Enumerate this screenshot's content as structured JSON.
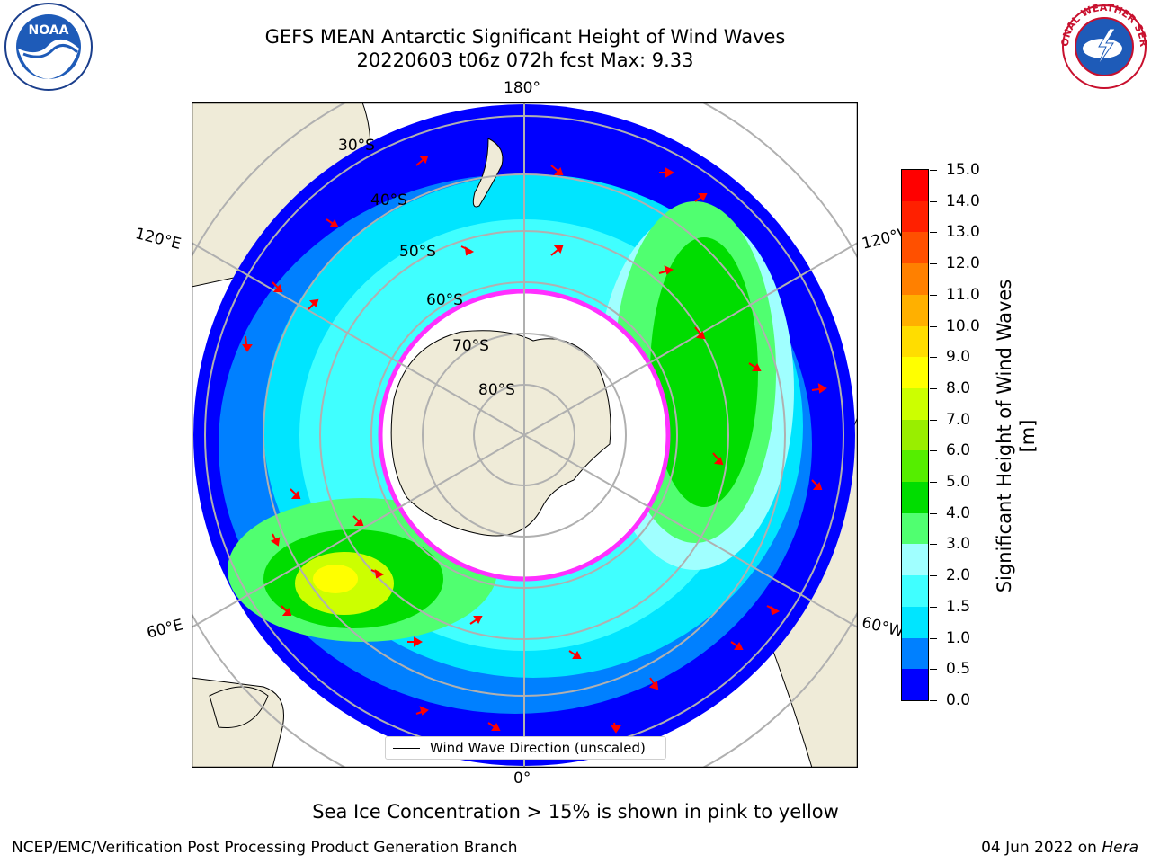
{
  "title_line1": "GEFS MEAN Antarctic Significant Height of Wind Waves",
  "title_line2": "20220603 t06z 072h fcst   Max: 9.33",
  "longitude_labels": {
    "top": "180°",
    "bottom": "0°",
    "upper_left": "120°E",
    "upper_right": "120°W",
    "lower_left": "60°E",
    "lower_right": "60°W"
  },
  "latitude_labels": [
    "30°S",
    "40°S",
    "50°S",
    "60°S",
    "70°S",
    "80°S"
  ],
  "colorbar": {
    "label": "Significant Height of Wind Waves [m]",
    "ticks": [
      "15.0",
      "14.0",
      "13.0",
      "12.0",
      "11.0",
      "10.0",
      "9.0",
      "8.0",
      "7.0",
      "6.0",
      "5.0",
      "4.0",
      "3.0",
      "2.0",
      "1.5",
      "1.0",
      "0.5",
      "0.0"
    ],
    "colors_bottom_to_top": [
      "#0000ff",
      "#0080ff",
      "#00e5ff",
      "#40ffff",
      "#a0ffff",
      "#50ff70",
      "#00dd00",
      "#55ee00",
      "#99ee00",
      "#ccff00",
      "#ffff00",
      "#ffdd00",
      "#ffb000",
      "#ff8000",
      "#ff5000",
      "#ff2000",
      "#ff0000"
    ]
  },
  "legend_text": "Wind Wave Direction (unscaled)",
  "caption": "Sea Ice Concentration > 15% is shown in pink to yellow",
  "footer_left": "NCEP/EMC/Verification Post Processing Product Generation Branch",
  "footer_date": "04 Jun 2022 on",
  "footer_system": "Hera",
  "logos": {
    "left": "noaa-logo",
    "right": "nws-logo"
  },
  "logo_text": {
    "noaa": "NOAA",
    "nws": "NATIONAL WEATHER SERVICE"
  }
}
